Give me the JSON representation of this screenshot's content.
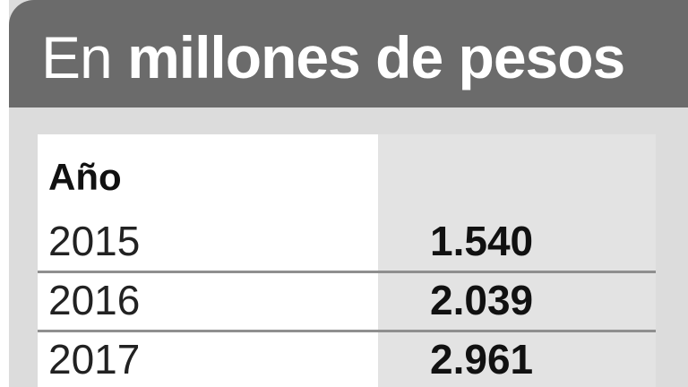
{
  "title": {
    "light": "En",
    "bold": "millones de pesos"
  },
  "chart_data": {
    "type": "table",
    "title": "En millones de pesos",
    "columns": [
      "Año",
      ""
    ],
    "rows": [
      {
        "year": "2015",
        "value": "1.540"
      },
      {
        "year": "2016",
        "value": "2.039"
      },
      {
        "year": "2017",
        "value": "2.961"
      }
    ]
  },
  "colors": {
    "header_bg": "#6b6b6b",
    "panel_bg": "#dcdcdc",
    "value_column_bg": "#e3e3e3"
  }
}
